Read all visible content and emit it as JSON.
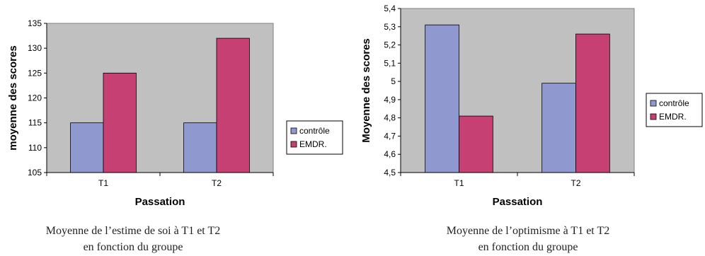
{
  "chart_data": [
    {
      "type": "bar",
      "categories": [
        "T1",
        "T2"
      ],
      "series": [
        {
          "name": "contrôle",
          "values": [
            115,
            115
          ]
        },
        {
          "name": "EMDR.",
          "values": [
            125,
            132
          ]
        }
      ],
      "xlabel": "Passation",
      "ylabel": "moyenne des scores",
      "ylim": [
        105,
        135
      ],
      "yticks": [
        "105",
        "110",
        "115",
        "120",
        "125",
        "130",
        "135"
      ],
      "grid": false,
      "legend": "right",
      "caption_line1": "Moyenne de l’estime de soi à T1 et T2",
      "caption_line2": "en fonction du groupe"
    },
    {
      "type": "bar",
      "categories": [
        "T1",
        "T2"
      ],
      "series": [
        {
          "name": "contrôle",
          "values": [
            5.31,
            4.99
          ]
        },
        {
          "name": "EMDR.",
          "values": [
            4.81,
            5.26
          ]
        }
      ],
      "xlabel": "Passation",
      "ylabel": "Moyenne des scores",
      "ylim": [
        4.5,
        5.4
      ],
      "yticks": [
        "4,5",
        "4,6",
        "4,7",
        "4,8",
        "4,9",
        "5",
        "5,1",
        "5,2",
        "5,3",
        "5,4"
      ],
      "grid": false,
      "legend": "right",
      "caption_line1": "Moyenne de l’optimisme à T1 et T2",
      "caption_line2": "en fonction du groupe"
    }
  ],
  "colors": {
    "plot_area": "#c0c0c0",
    "series": [
      "#9099cf",
      "#c64074"
    ]
  }
}
